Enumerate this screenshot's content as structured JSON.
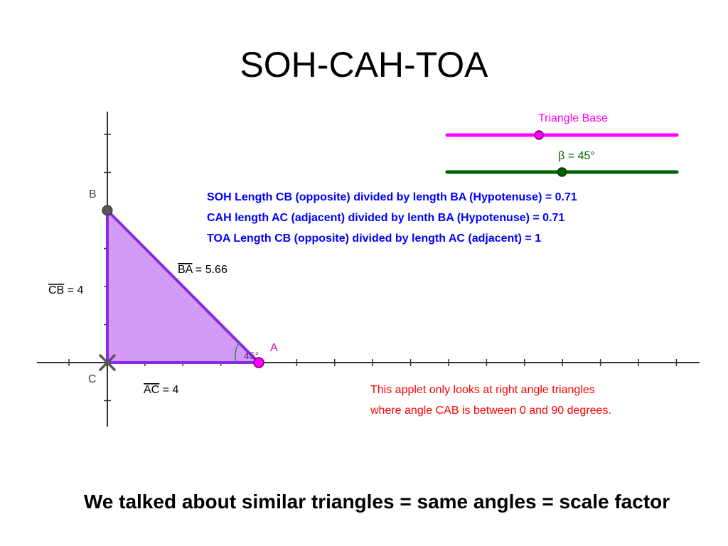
{
  "title": "SOH-CAH-TOA",
  "colors": {
    "triangle_fill": "#d39bf5",
    "triangle_stroke": "#8a2be2",
    "slider_base": "#ff00ff",
    "slider_beta": "#006400",
    "ratio_text": "#0000ff",
    "note_text": "#ff0000",
    "angle_text": "#8a2be2"
  },
  "points": {
    "a": "A",
    "b": "B",
    "c": "C"
  },
  "segment_labels": {
    "cb": {
      "name": "CB",
      "value": " = 4"
    },
    "ba": {
      "name": "BA",
      "value": " = 5.66"
    },
    "ac": {
      "name": "AC",
      "value": " = 4"
    }
  },
  "angle_label": "45°",
  "sliders": {
    "base": {
      "label": "Triangle Base",
      "fraction": 0.4
    },
    "beta": {
      "label": "β = 45°",
      "fraction": 0.5
    }
  },
  "ratios": {
    "soh": "SOH Length CB (opposite) divided by length BA (Hypotenuse) = 0.71",
    "cah": "CAH length AC (adjacent) divided by lenth BA (Hypotenuse) = 0.71",
    "toa": "TOA Length CB (opposite) divided by length AC (adjacent) = 1"
  },
  "note": {
    "line1": "This applet only looks at right angle triangles",
    "line2": "where angle CAB is between 0 and 90 degrees."
  },
  "footer": "We talked about similar triangles = same angles = scale factor"
}
